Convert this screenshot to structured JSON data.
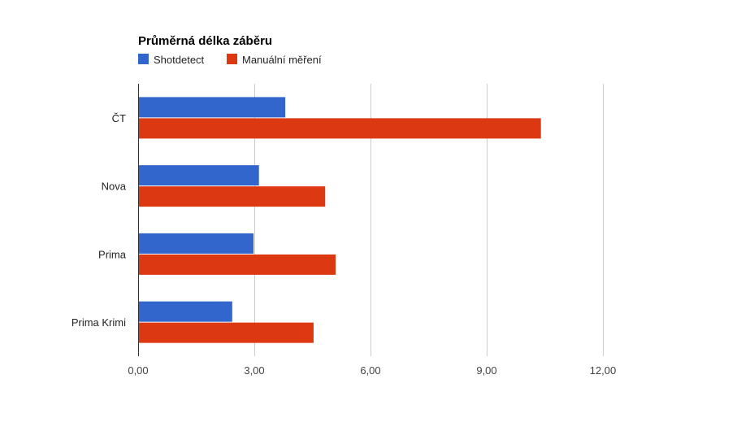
{
  "chart_data": {
    "type": "bar",
    "orientation": "horizontal",
    "title": "Průměrná délka záběru",
    "categories": [
      "ČT",
      "Nova",
      "Prima",
      "Prima Krimi"
    ],
    "series": [
      {
        "name": "Shotdetect",
        "color": "#3366cc",
        "values": [
          3.8,
          3.12,
          2.98,
          2.43
        ]
      },
      {
        "name": "Manuální měření",
        "color": "#dc3912",
        "values": [
          10.4,
          4.83,
          5.1,
          4.53
        ]
      }
    ],
    "xlim": [
      0,
      12
    ],
    "x_ticks": [
      "0,00",
      "3,00",
      "6,00",
      "9,00",
      "12,00"
    ],
    "x_tick_values": [
      0,
      3,
      6,
      9,
      12
    ],
    "grid": true,
    "legend_position": "top-left"
  }
}
